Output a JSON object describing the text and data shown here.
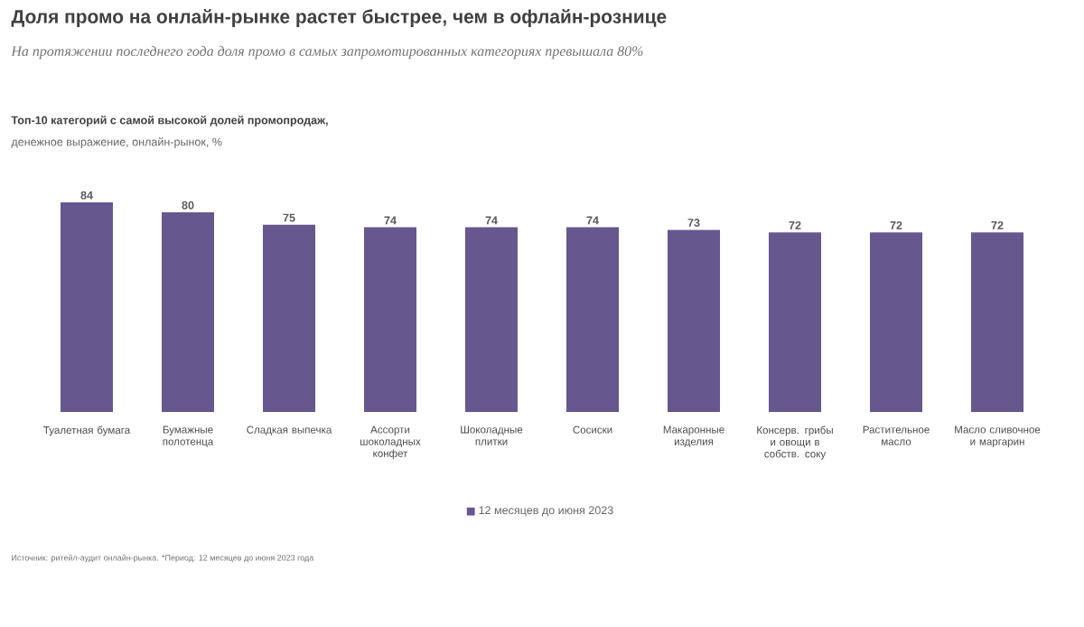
{
  "chart_data": {
    "type": "bar",
    "title": "Доля промо на онлайн-рынке растет быстрее, чем в офлайн-рознице",
    "subtitle": "На протяжении последнего года доля промо в самых запромотированных категориях превышала 80%",
    "annotations": [
      "Топ-10 категорий с самой высокой долей промопродаж,",
      "денежное выражение, онлайн-рынок, %",
      "Источник: ритейл-аудит онлайн-рынка. *Период: 12 месяцев до июня 2023 года"
    ],
    "categories": [
      "Туалетная бумага",
      "Бумажные полотенца",
      "Сладкая выпечка",
      "Ассорти шоколадных конфет",
      "Шоколадные плитки",
      "Сосиски",
      "Макаронные изделия",
      "Консерв. грибы и овощи в собств. соку",
      "Растительное масло",
      "Масло сливочное и маргарин"
    ],
    "series": [
      {
        "name": "12 месяцев до июня 2023",
        "color": "#66578f",
        "values": [
          84,
          80,
          75,
          74,
          74,
          74,
          73,
          72,
          72,
          72
        ]
      }
    ],
    "data_labels": true,
    "legend": "bottom"
  }
}
